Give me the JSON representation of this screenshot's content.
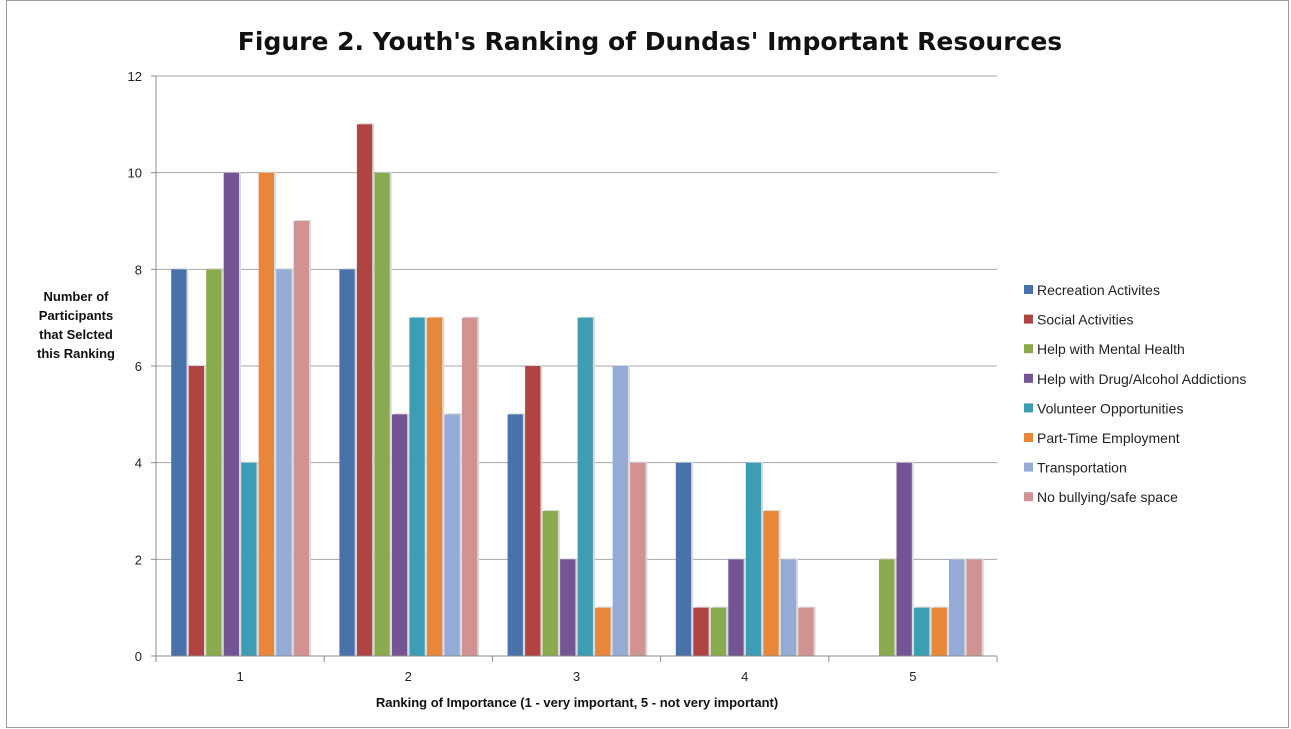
{
  "chart_data": {
    "type": "bar",
    "title": "Figure 2. Youth's Ranking of Dundas' Important Resources",
    "xlabel": "Ranking of Importance (1 - very important, 5 - not very important)",
    "ylabel_lines": [
      "Number of",
      "Participants",
      "that Selcted",
      "this Ranking"
    ],
    "categories": [
      "1",
      "2",
      "3",
      "4",
      "5"
    ],
    "ylim": [
      0,
      12
    ],
    "yticks": [
      "0",
      "2",
      "4",
      "6",
      "8",
      "10",
      "12"
    ],
    "grid": true,
    "legend_position": "right",
    "series": [
      {
        "name": "Recreation Activites",
        "color": "#4a72aa",
        "values": [
          8,
          8,
          5,
          4,
          0
        ]
      },
      {
        "name": "Social Activities",
        "color": "#b04442",
        "values": [
          6,
          11,
          6,
          1,
          0
        ]
      },
      {
        "name": "Help with Mental Health",
        "color": "#8aaa4e",
        "values": [
          8,
          10,
          3,
          1,
          2
        ]
      },
      {
        "name": "Help with Drug/Alcohol Addictions",
        "color": "#735593",
        "values": [
          10,
          5,
          2,
          2,
          4
        ]
      },
      {
        "name": "Volunteer Opportunities",
        "color": "#3d9db4",
        "values": [
          4,
          7,
          7,
          4,
          1
        ]
      },
      {
        "name": "Part-Time Employment",
        "color": "#e8873a",
        "values": [
          10,
          7,
          1,
          3,
          1
        ]
      },
      {
        "name": "Transportation",
        "color": "#95aad4",
        "values": [
          8,
          5,
          6,
          2,
          2
        ]
      },
      {
        "name": "No bullying/safe space",
        "color": "#d09392",
        "values": [
          9,
          7,
          4,
          1,
          2
        ]
      }
    ]
  }
}
